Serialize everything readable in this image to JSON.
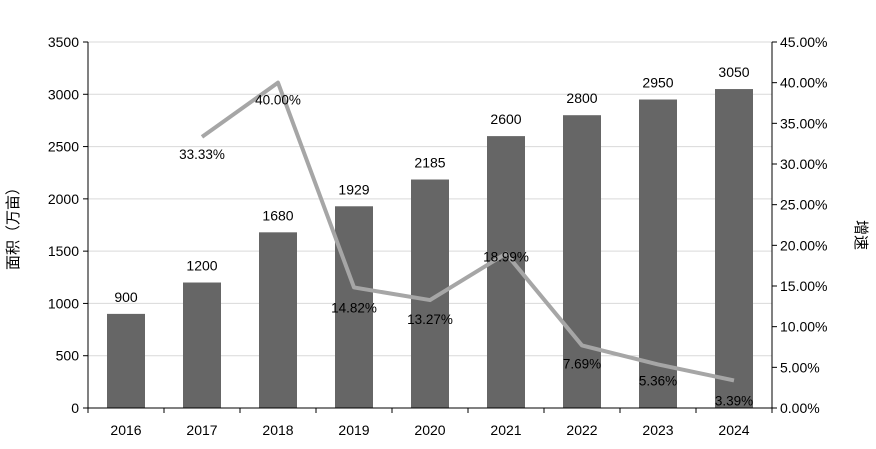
{
  "chart_data": {
    "type": "bar",
    "categories": [
      "2016",
      "2017",
      "2018",
      "2019",
      "2020",
      "2021",
      "2022",
      "2023",
      "2024"
    ],
    "series": [
      {
        "type": "bar",
        "axis": "left",
        "values": [
          900,
          1200,
          1680,
          1929,
          2185,
          2600,
          2800,
          2950,
          3050
        ],
        "labels": [
          "900",
          "1200",
          "1680",
          "1929",
          "2185",
          "2600",
          "2800",
          "2950",
          "3050"
        ],
        "color": "#666666"
      },
      {
        "type": "line",
        "axis": "right",
        "values": [
          null,
          33.33,
          40.0,
          14.82,
          13.27,
          18.99,
          7.69,
          5.36,
          3.39
        ],
        "labels": [
          "",
          "33.33%",
          "40.00%",
          "14.82%",
          "13.27%",
          "18.99%",
          "7.69%",
          "5.36%",
          "3.39%"
        ],
        "color": "#a6a6a6"
      }
    ],
    "ylabel": "面积（万亩）",
    "y2label": "增速",
    "ylim": [
      0,
      3500
    ],
    "y_ticks": [
      "0",
      "500",
      "1000",
      "1500",
      "2000",
      "2500",
      "3000",
      "3500"
    ],
    "y2lim": [
      0,
      45
    ],
    "y2_ticks": [
      "0.00%",
      "5.00%",
      "10.00%",
      "15.00%",
      "20.00%",
      "25.00%",
      "30.00%",
      "35.00%",
      "40.00%",
      "45.00%"
    ],
    "grid": true,
    "legend": "none"
  }
}
